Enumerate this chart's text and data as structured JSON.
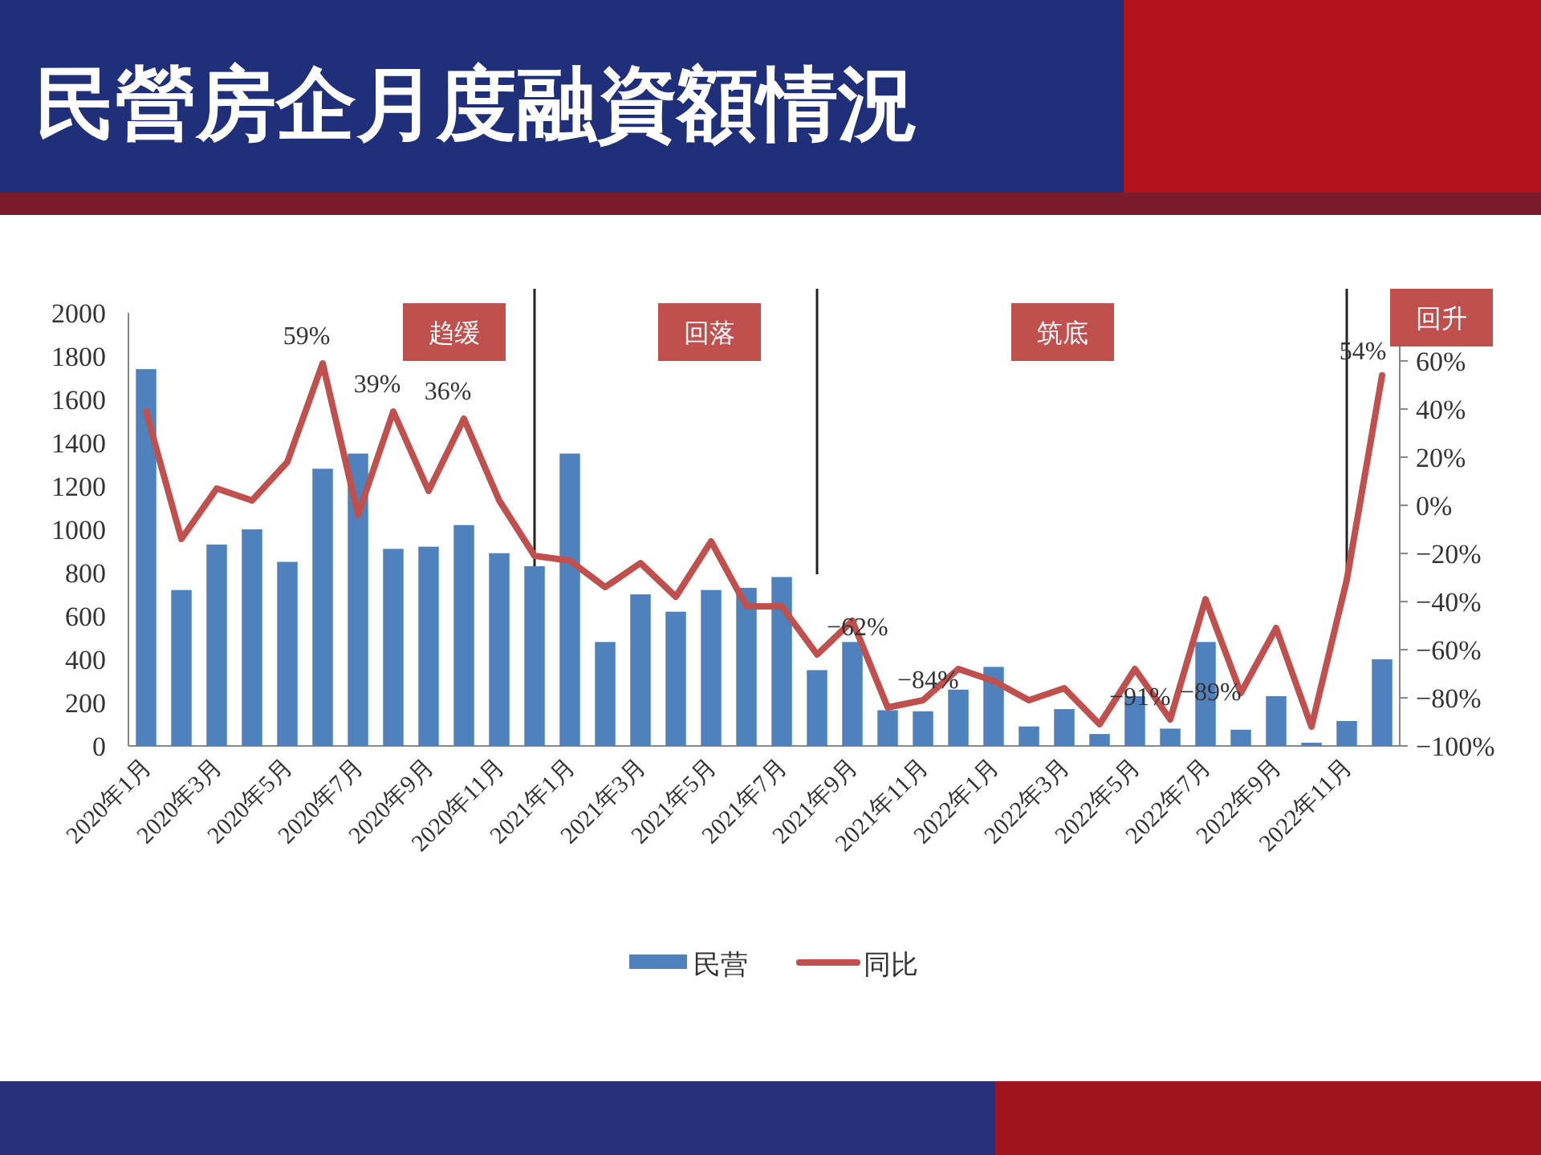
{
  "chart_data": {
    "type": "bar",
    "title": "民營房企月度融資額情況",
    "categories": [
      "2020年1月",
      null,
      "2020年3月",
      null,
      "2020年5月",
      null,
      "2020年7月",
      null,
      "2020年9月",
      null,
      "2020年11月",
      null,
      "2021年1月",
      null,
      "2021年3月",
      null,
      "2021年5月",
      null,
      "2021年7月",
      null,
      "2021年9月",
      null,
      "2021年11月",
      null,
      "2022年1月",
      null,
      "2022年3月",
      null,
      "2022年5月",
      null,
      "2022年7月",
      null,
      "2022年9月",
      null,
      "2022年11月",
      null
    ],
    "series": [
      {
        "name": "民营",
        "color": "#4f81bd",
        "values": [
          1740,
          720,
          930,
          1000,
          850,
          1280,
          1350,
          910,
          920,
          1020,
          890,
          830,
          1350,
          480,
          700,
          620,
          720,
          730,
          780,
          350,
          480,
          165,
          160,
          260,
          365,
          90,
          170,
          55,
          230,
          80,
          480,
          75,
          230,
          15,
          115,
          400
        ]
      },
      {
        "name": "同比",
        "type": "line",
        "axis": "y2",
        "color": "#c0504d",
        "values": [
          39,
          -14,
          7,
          2,
          18,
          59,
          -4,
          39,
          6,
          36,
          2,
          -21,
          -23,
          -34,
          -24,
          -38,
          -15,
          -42,
          -42,
          -62,
          -48,
          -84,
          -81,
          -68,
          -73,
          -81,
          -76,
          -91,
          -68,
          -89,
          -39,
          -78,
          -51,
          -92,
          -31,
          54
        ],
        "value_labels": [
          null,
          null,
          null,
          null,
          null,
          "59%",
          null,
          "39%",
          null,
          "36%",
          null,
          null,
          null,
          null,
          null,
          null,
          null,
          null,
          null,
          "−62%",
          null,
          "−84%",
          null,
          null,
          null,
          null,
          null,
          "−91%",
          null,
          "−89%",
          null,
          null,
          null,
          null,
          null,
          "54%"
        ]
      }
    ],
    "ylim": [
      0,
      2000
    ],
    "yticks": [
      0,
      200,
      400,
      600,
      800,
      1000,
      1200,
      1400,
      1600,
      1800,
      2000
    ],
    "y2lim": [
      -100,
      80
    ],
    "y2ticks": [
      {
        "value": -100,
        "label": "−100%"
      },
      {
        "value": -80,
        "label": "−80%"
      },
      {
        "value": -60,
        "label": "−60%"
      },
      {
        "value": -40,
        "label": "−40%"
      },
      {
        "value": -20,
        "label": "−20%"
      },
      {
        "value": 0,
        "label": "0%"
      },
      {
        "value": 20,
        "label": "20%"
      },
      {
        "value": 40,
        "label": "40%"
      },
      {
        "value": 60,
        "label": "60%"
      }
    ],
    "annotations": [
      "趋缓",
      "回落",
      "筑底",
      "回升"
    ],
    "legend": "bottom"
  }
}
